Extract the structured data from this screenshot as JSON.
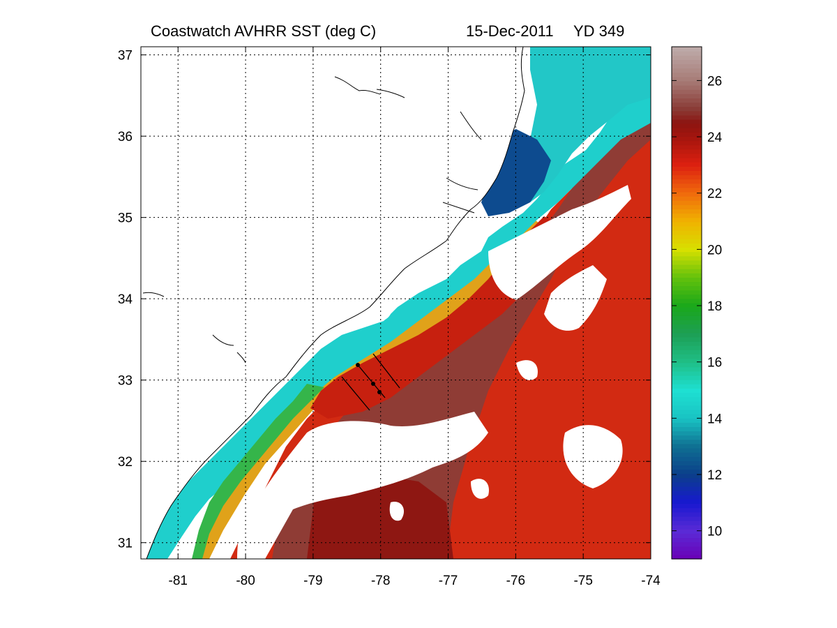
{
  "title": {
    "product": "Coastwatch   AVHRR   SST  (deg C)",
    "date": "15-Dec-2011",
    "yearday": "YD 349"
  },
  "map": {
    "lon_range": [
      -81.55,
      -74
    ],
    "lat_range": [
      30.8,
      37.1
    ],
    "grid": true,
    "lon_ticks": [
      "-81",
      "-80",
      "-79",
      "-78",
      "-77",
      "-76",
      "-75",
      "-74"
    ],
    "lat_ticks": [
      "31",
      "32",
      "33",
      "34",
      "35",
      "36",
      "37"
    ],
    "lon_tick_values": [
      -81,
      -80,
      -79,
      -78,
      -77,
      -76,
      -75,
      -74
    ],
    "lat_tick_values": [
      31,
      32,
      33,
      34,
      35,
      36,
      37
    ],
    "cloud_color": "#ffffff"
  },
  "colorbar": {
    "range": [
      9,
      27.2
    ],
    "ticks": [
      "10",
      "12",
      "14",
      "16",
      "18",
      "20",
      "22",
      "24",
      "26"
    ],
    "tick_values": [
      10,
      12,
      14,
      16,
      18,
      20,
      22,
      24,
      26
    ],
    "colormap": [
      [
        9.0,
        "#6a00b5"
      ],
      [
        10.0,
        "#5a2bd6"
      ],
      [
        11.0,
        "#1818d0"
      ],
      [
        12.0,
        "#0b3f8a"
      ],
      [
        13.0,
        "#0f6f92"
      ],
      [
        14.0,
        "#19c3c3"
      ],
      [
        15.0,
        "#1ee0d2"
      ],
      [
        16.0,
        "#1fbf86"
      ],
      [
        17.0,
        "#1d9f55"
      ],
      [
        18.0,
        "#1aa81a"
      ],
      [
        19.0,
        "#63c10c"
      ],
      [
        20.0,
        "#d7e000"
      ],
      [
        21.0,
        "#f0b200"
      ],
      [
        22.0,
        "#f06a0c"
      ],
      [
        23.0,
        "#dd2010"
      ],
      [
        24.0,
        "#a3150e"
      ],
      [
        24.5,
        "#8c1511"
      ],
      [
        25.0,
        "#8a3b36"
      ],
      [
        26.0,
        "#a77b76"
      ],
      [
        27.2,
        "#bfacab"
      ]
    ]
  }
}
